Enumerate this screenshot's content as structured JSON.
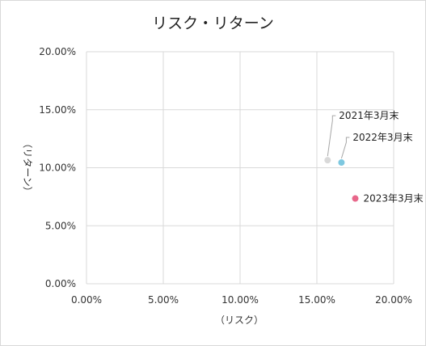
{
  "chart_data": {
    "type": "scatter",
    "title": "リスク・リターン",
    "xlabel": "（リスク）",
    "ylabel": "（リターン）",
    "xlim": [
      0,
      20
    ],
    "ylim": [
      0,
      20
    ],
    "x_ticks": [
      "0.00%",
      "5.00%",
      "10.00%",
      "15.00%",
      "20.00%"
    ],
    "y_ticks": [
      "0.00%",
      "5.00%",
      "10.00%",
      "15.00%",
      "20.00%"
    ],
    "grid": true,
    "points": [
      {
        "label": "2021年3月末",
        "x": 15.7,
        "y": 10.65,
        "color": "#d9d9d9"
      },
      {
        "label": "2022年3月末",
        "x": 16.6,
        "y": 10.45,
        "color": "#7ec8e0"
      },
      {
        "label": "2023年3月末",
        "x": 17.5,
        "y": 7.35,
        "color": "#e8678a"
      }
    ]
  }
}
